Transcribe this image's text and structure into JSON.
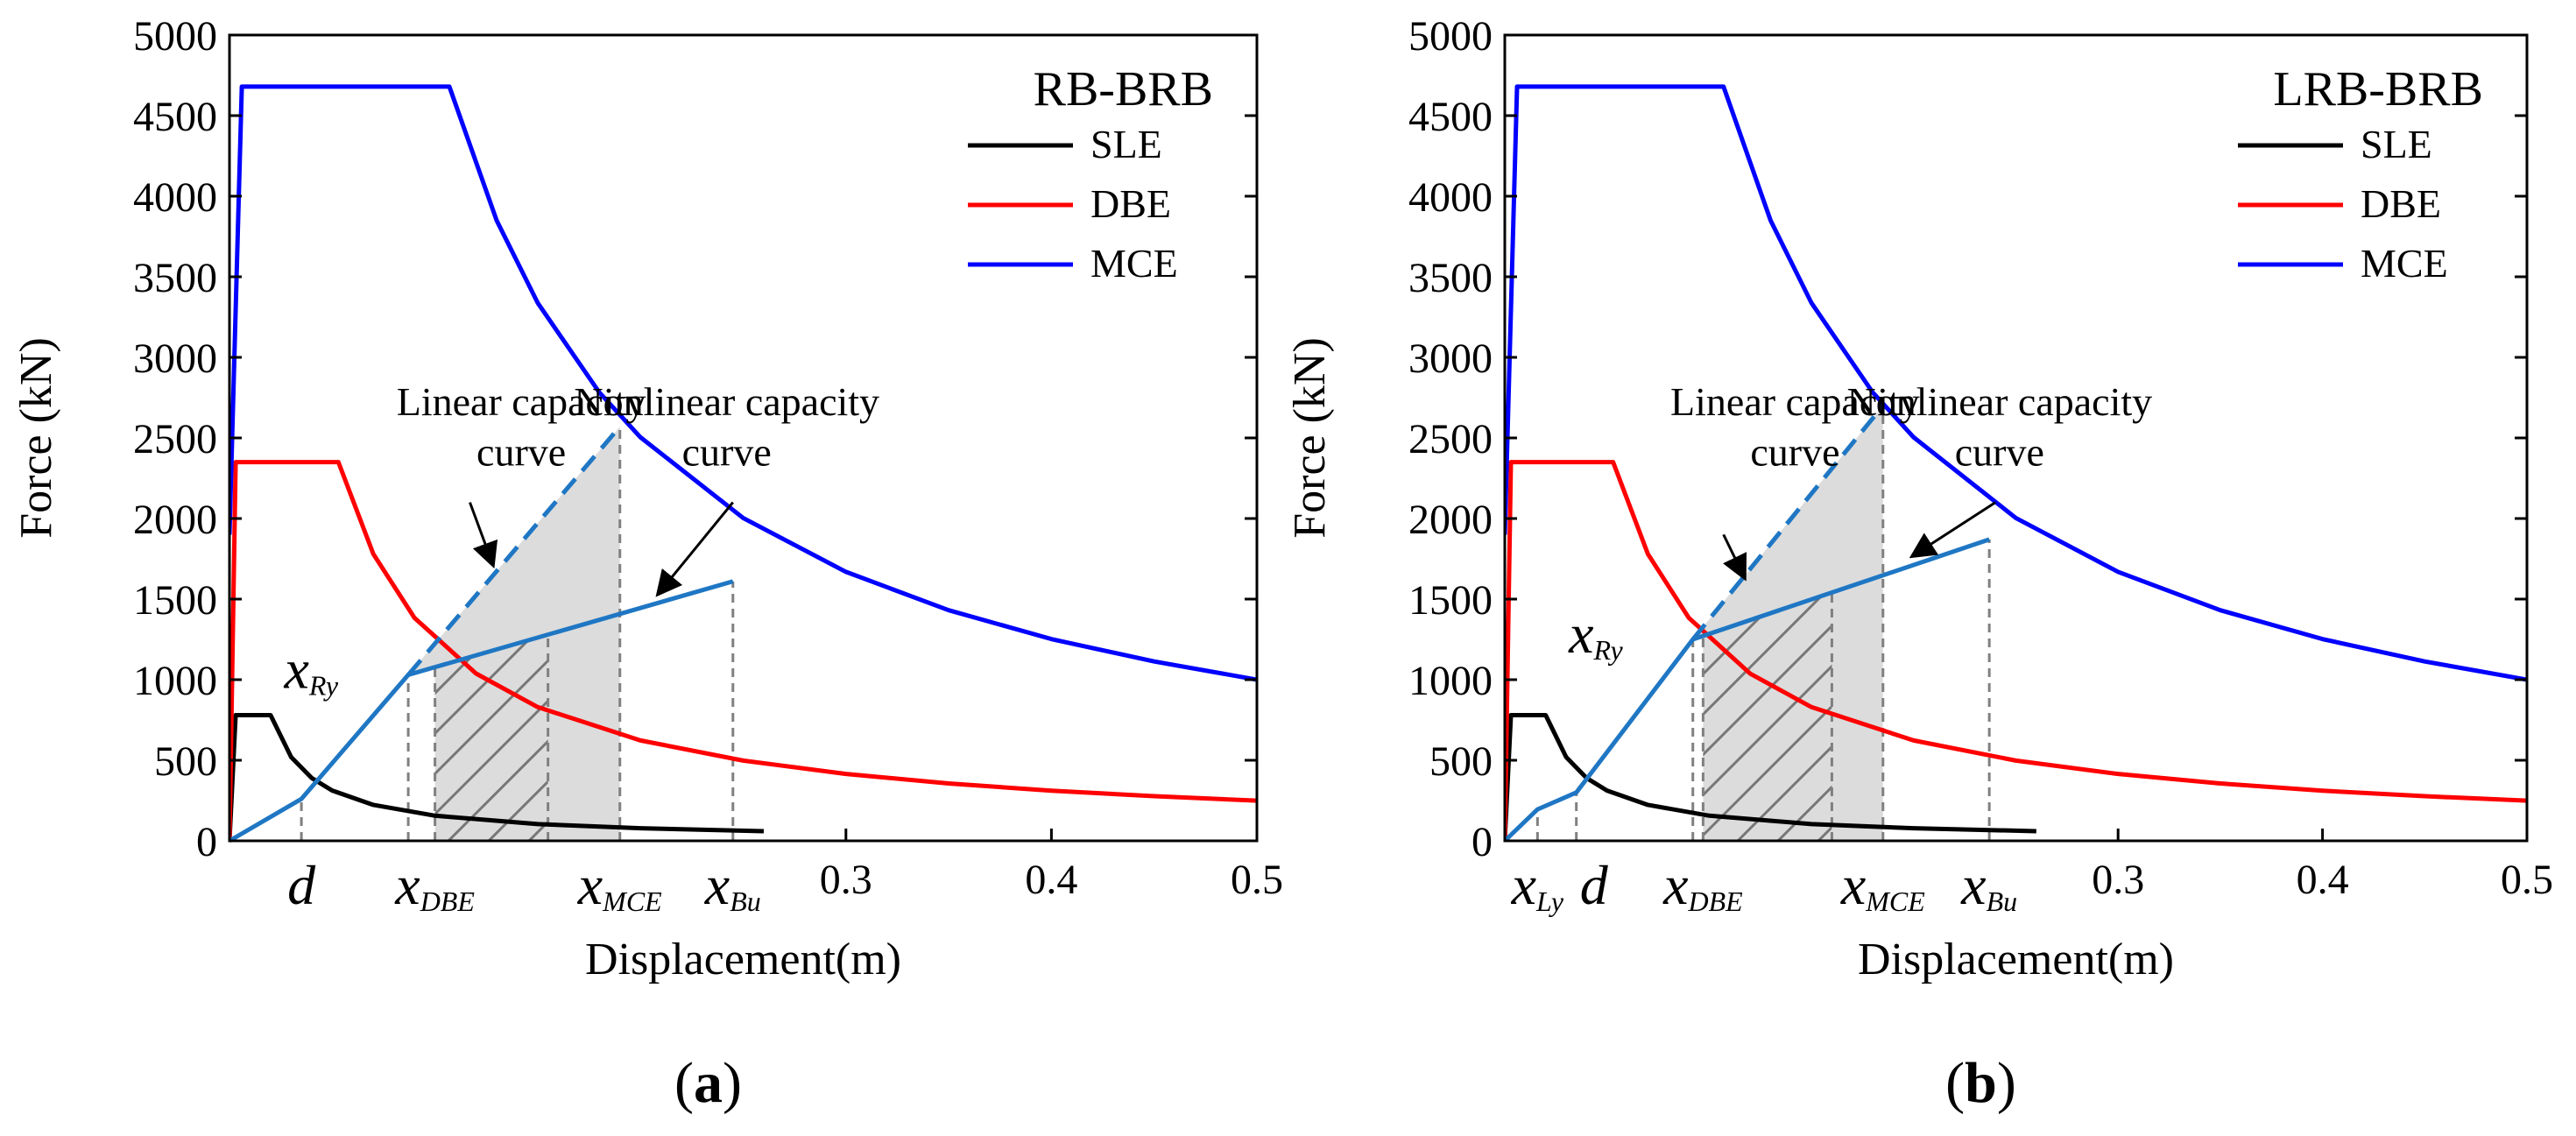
{
  "chart_data": [
    {
      "type": "line",
      "panel_label": "(a)",
      "panel_letter": "a",
      "title": "RB-BRB",
      "xlabel": "Displacement(m)",
      "ylabel": "Force (kN)",
      "xlim": [
        0,
        0.5
      ],
      "ylim": [
        0,
        5000
      ],
      "xticks": [
        "0.3",
        "0.4",
        "0.5"
      ],
      "xtick_values": [
        0.3,
        0.4,
        0.5
      ],
      "yticks": [
        "0",
        "500",
        "1000",
        "1500",
        "2000",
        "2500",
        "3000",
        "3500",
        "4000",
        "4500",
        "5000"
      ],
      "ytick_values": [
        0,
        500,
        1000,
        1500,
        2000,
        2500,
        3000,
        3500,
        4000,
        4500,
        5000
      ],
      "legend": {
        "position": "top-right",
        "entries": [
          {
            "name": "SLE",
            "color": "#000000"
          },
          {
            "name": "DBE",
            "color": "#ff0000"
          },
          {
            "name": "MCE",
            "color": "#0000ff"
          }
        ]
      },
      "series": [
        {
          "name": "SLE",
          "color": "#000000",
          "x": [
            0,
            0.003,
            0.02,
            0.03,
            0.04,
            0.05,
            0.07,
            0.1,
            0.15,
            0.2,
            0.26
          ],
          "y": [
            0,
            780,
            780,
            520,
            390,
            312,
            223,
            156,
            104,
            78,
            60
          ]
        },
        {
          "name": "DBE",
          "color": "#ff0000",
          "x": [
            0,
            0.003,
            0.053,
            0.07,
            0.09,
            0.12,
            0.15,
            0.2,
            0.25,
            0.3,
            0.35,
            0.4,
            0.45,
            0.5
          ],
          "y": [
            0,
            2350,
            2350,
            1780,
            1384,
            1038,
            830,
            623,
            498,
            415,
            356,
            311,
            277,
            249
          ]
        },
        {
          "name": "MCE",
          "color": "#0000ff",
          "x": [
            0,
            0.006,
            0.107,
            0.13,
            0.15,
            0.18,
            0.2,
            0.25,
            0.3,
            0.35,
            0.4,
            0.45,
            0.5
          ],
          "y": [
            1900,
            4680,
            4680,
            3850,
            3338,
            2782,
            2504,
            2003,
            1669,
            1431,
            1252,
            1113,
            1000
          ]
        }
      ],
      "capacity_curves": {
        "color": "#1f77c4",
        "bilinear_x": [
          0,
          0.035,
          0.087,
          0.245
        ],
        "bilinear_y": [
          0,
          260,
          1030,
          1610
        ],
        "linear_dashed_x": [
          0.087,
          0.19
        ],
        "linear_dashed_y": [
          1030,
          2570
        ],
        "xRy": 0.087,
        "x_DBE": 0.1,
        "x_MCE": 0.19,
        "x_Bu": 0.245,
        "hatched_end": 0.155,
        "d": 0.035
      },
      "annotations": {
        "linear_label_1": "Linear capacity",
        "linear_label_2": "curve",
        "nonlinear_label_1": "Nonlinear capacity",
        "nonlinear_label_2": "curve",
        "xRy_base": "x",
        "xRy_sub": "Ry",
        "xLy_base": "",
        "xLy_sub": "",
        "d": "d",
        "xDBE_base": "x",
        "xDBE_sub": "DBE",
        "xMCE_base": "x",
        "xMCE_sub": "MCE",
        "xBu_base": "x",
        "xBu_sub": "Bu"
      }
    },
    {
      "type": "line",
      "panel_label": "(b)",
      "panel_letter": "b",
      "title": "LRB-BRB",
      "xlabel": "Displacement(m)",
      "ylabel": "Force (kN)",
      "xlim": [
        0,
        0.5
      ],
      "ylim": [
        0,
        5000
      ],
      "xticks": [
        "0.3",
        "0.4",
        "0.5"
      ],
      "xtick_values": [
        0.3,
        0.4,
        0.5
      ],
      "yticks": [
        "0",
        "500",
        "1000",
        "1500",
        "2000",
        "2500",
        "3000",
        "3500",
        "4000",
        "4500",
        "5000"
      ],
      "ytick_values": [
        0,
        500,
        1000,
        1500,
        2000,
        2500,
        3000,
        3500,
        4000,
        4500,
        5000
      ],
      "legend": {
        "position": "top-right",
        "entries": [
          {
            "name": "SLE",
            "color": "#000000"
          },
          {
            "name": "DBE",
            "color": "#ff0000"
          },
          {
            "name": "MCE",
            "color": "#0000ff"
          }
        ]
      },
      "series": [
        {
          "name": "SLE",
          "color": "#000000",
          "x": [
            0,
            0.003,
            0.02,
            0.03,
            0.04,
            0.05,
            0.07,
            0.1,
            0.15,
            0.2,
            0.26
          ],
          "y": [
            0,
            780,
            780,
            520,
            390,
            312,
            223,
            156,
            104,
            78,
            60
          ]
        },
        {
          "name": "DBE",
          "color": "#ff0000",
          "x": [
            0,
            0.003,
            0.053,
            0.07,
            0.09,
            0.12,
            0.15,
            0.2,
            0.25,
            0.3,
            0.35,
            0.4,
            0.45,
            0.5
          ],
          "y": [
            0,
            2350,
            2350,
            1780,
            1384,
            1038,
            830,
            623,
            498,
            415,
            356,
            311,
            277,
            249
          ]
        },
        {
          "name": "MCE",
          "color": "#0000ff",
          "x": [
            0,
            0.006,
            0.107,
            0.13,
            0.15,
            0.18,
            0.2,
            0.25,
            0.3,
            0.35,
            0.4,
            0.45,
            0.5
          ],
          "y": [
            1900,
            4680,
            4680,
            3850,
            3338,
            2782,
            2504,
            2003,
            1669,
            1431,
            1252,
            1113,
            1000
          ]
        }
      ],
      "capacity_curves": {
        "color": "#1f77c4",
        "bilinear_x": [
          0,
          0.016,
          0.035,
          0.092,
          0.237
        ],
        "bilinear_y": [
          0,
          195,
          300,
          1250,
          1870
        ],
        "linear_dashed_x": [
          0.092,
          0.185
        ],
        "linear_dashed_y": [
          1250,
          2700
        ],
        "xRy": 0.092,
        "x_DBE": 0.097,
        "x_MCE": 0.185,
        "x_Bu": 0.237,
        "hatched_end": 0.16,
        "d": 0.035
      },
      "annotations": {
        "linear_label_1": "Linear capacity",
        "linear_label_2": "curve",
        "nonlinear_label_1": "Nonlinear capacity",
        "nonlinear_label_2": "curve",
        "xRy_base": "x",
        "xRy_sub": "Ry",
        "xLy_base": "x",
        "xLy_sub": "Ly",
        "d": "d",
        "xDBE_base": "x",
        "xDBE_sub": "DBE",
        "xMCE_base": "x",
        "xMCE_sub": "MCE",
        "xBu_base": "x",
        "xBu_sub": "Bu"
      }
    }
  ]
}
